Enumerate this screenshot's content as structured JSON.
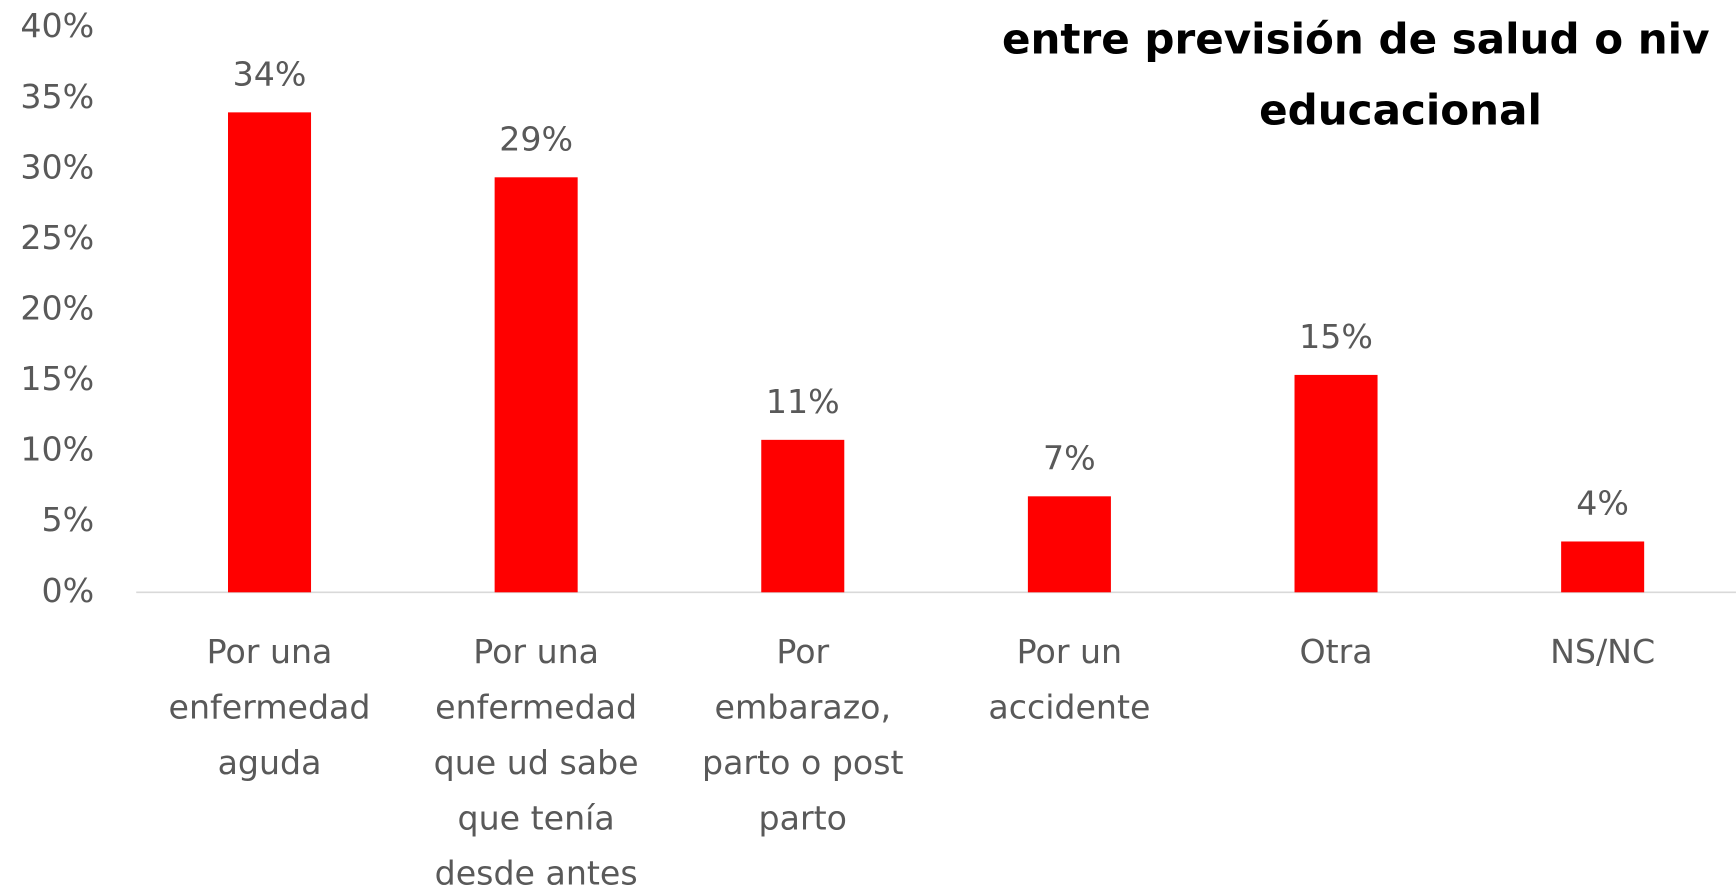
{
  "chart_data": {
    "type": "bar",
    "title_lines": [
      "entre previsión de salud o niv",
      "educacional"
    ],
    "categories": [
      "Por una enfermedad aguda",
      "Por una enfermedad que ud sabe que tenía desde antes",
      "Por embarazo, parto o post parto",
      "Por un accidente",
      "Otra",
      "NS/NC"
    ],
    "values": [
      34,
      29.4,
      10.8,
      6.8,
      15.4,
      3.6
    ],
    "value_labels": [
      "34%",
      "29%",
      "11%",
      "7%",
      "15%",
      "4%"
    ],
    "color": "#ff0000",
    "ylim": [
      0,
      40
    ],
    "yticks": [
      {
        "value": 0,
        "label": "0%"
      },
      {
        "value": 5,
        "label": "5%"
      },
      {
        "value": 10,
        "label": "10%"
      },
      {
        "value": 15,
        "label": "15%"
      },
      {
        "value": 20,
        "label": "20%"
      },
      {
        "value": 25,
        "label": "25%"
      },
      {
        "value": 30,
        "label": "30%"
      },
      {
        "value": 35,
        "label": "35%"
      },
      {
        "value": 40,
        "label": "40%"
      }
    ],
    "grid": false
  }
}
